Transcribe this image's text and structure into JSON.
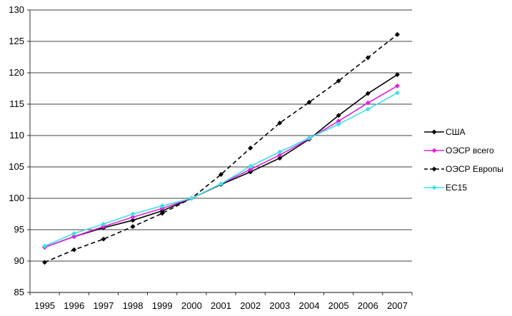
{
  "chart_data": {
    "type": "line",
    "title": "",
    "xlabel": "",
    "ylabel": "",
    "x": [
      "1995",
      "1996",
      "1997",
      "1998",
      "1999",
      "2000",
      "2001",
      "2002",
      "2003",
      "2004",
      "2005",
      "2006",
      "2007"
    ],
    "ylim": [
      85,
      130
    ],
    "yticks": [
      85,
      90,
      95,
      100,
      105,
      110,
      115,
      120,
      125,
      130
    ],
    "grid": "horizontal",
    "legend_position": "right",
    "series": [
      {
        "name": "США",
        "color": "#000000",
        "dash": "solid",
        "values": [
          92.2,
          93.9,
          95.3,
          96.5,
          98.0,
          100.0,
          102.2,
          104.2,
          106.4,
          109.4,
          113.2,
          116.7,
          119.7
        ]
      },
      {
        "name": "ОЭСР всего",
        "color": "#e020e0",
        "dash": "solid",
        "values": [
          92.2,
          93.9,
          95.5,
          97.0,
          98.4,
          100.0,
          102.3,
          104.6,
          106.9,
          109.5,
          112.3,
          115.2,
          117.9
        ]
      },
      {
        "name": "ОЭСР Европы",
        "color": "#000000",
        "dash": "dashed",
        "values": [
          89.8,
          91.8,
          93.5,
          95.5,
          97.6,
          100.0,
          103.8,
          108.0,
          112.0,
          115.3,
          118.7,
          122.4,
          126.1
        ]
      },
      {
        "name": "ЕС15",
        "color": "#40e0e8",
        "dash": "solid",
        "values": [
          92.4,
          94.4,
          95.9,
          97.5,
          98.8,
          100.0,
          102.3,
          105.1,
          107.4,
          109.6,
          111.8,
          114.2,
          116.8
        ]
      }
    ]
  }
}
